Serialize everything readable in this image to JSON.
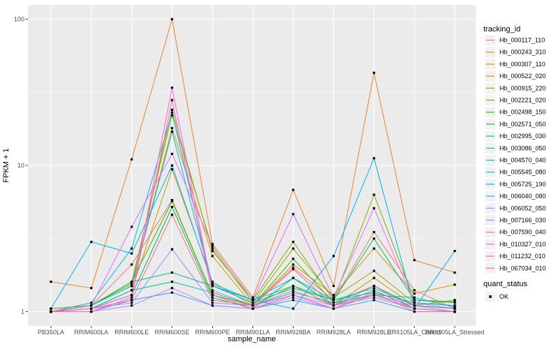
{
  "chart_data": {
    "type": "line",
    "title": "",
    "xlabel": "sample_name",
    "ylabel": "FPKM + 1",
    "yscale": "log10",
    "ylim": [
      1,
      100
    ],
    "grid": true,
    "legend_position": "right",
    "legend_title": "tracking_id",
    "quant_legend": {
      "title": "quant_status",
      "items": [
        "OK"
      ]
    },
    "y_ticks": [
      {
        "label": "1",
        "value": 1
      },
      {
        "label": "10",
        "value": 10
      },
      {
        "label": "100",
        "value": 100
      }
    ],
    "y_minor": [
      3.162,
      31.62
    ],
    "categories": [
      "PB350LA",
      "RRIM600LA",
      "RRIM600LE",
      "RRIM600SE",
      "RRIM600PE",
      "RRIM901LA",
      "RRIM928BA",
      "RRIM928LA",
      "RRIM928LE",
      "RRII105LA_Control",
      "RRII105LA_Stressed"
    ],
    "colors": {
      "panel": "#EBEBEB",
      "grid": "#FFFFFF",
      "tick_text": "#4D4D4D",
      "tick_mark": "#333333",
      "title_text": "#000000",
      "point": "#000000",
      "legend_key_bg": "#F2F2F2"
    },
    "series": [
      {
        "name": "Hb_000117_110",
        "color": "#F8766D",
        "values": [
          1.0,
          1.1,
          2.1,
          5.8,
          1.3,
          1.1,
          2.0,
          1.2,
          3.5,
          1.4,
          1.05
        ]
      },
      {
        "name": "Hb_000243_310",
        "color": "#EA8331",
        "values": [
          1.6,
          1.45,
          11.0,
          100.0,
          2.9,
          1.25,
          6.8,
          1.5,
          43.0,
          2.25,
          1.85
        ]
      },
      {
        "name": "Hb_000307_110",
        "color": "#D89000",
        "values": [
          1.05,
          1.1,
          1.5,
          18.0,
          2.4,
          1.1,
          2.1,
          1.3,
          2.7,
          1.33,
          1.53
        ]
      },
      {
        "name": "Hb_000522_020",
        "color": "#C09B00",
        "values": [
          1.0,
          1.05,
          1.4,
          9.4,
          1.6,
          1.1,
          1.5,
          1.1,
          1.7,
          1.1,
          1.2
        ]
      },
      {
        "name": "Hb_000915_220",
        "color": "#A3A500",
        "values": [
          1.0,
          1.1,
          1.6,
          22.0,
          2.7,
          1.15,
          2.7,
          1.25,
          1.9,
          1.15,
          1.1
        ]
      },
      {
        "name": "Hb_002221_020",
        "color": "#7CAE00",
        "values": [
          1.05,
          1.1,
          1.55,
          24.0,
          2.6,
          1.2,
          3.0,
          1.2,
          6.3,
          1.2,
          1.15
        ]
      },
      {
        "name": "Hb_002498_150",
        "color": "#39B600",
        "values": [
          1.0,
          1.1,
          1.6,
          5.7,
          1.3,
          1.1,
          2.3,
          1.15,
          1.5,
          1.1,
          1.05
        ]
      },
      {
        "name": "Hb_002571_050",
        "color": "#00BB4E",
        "values": [
          1.0,
          1.05,
          1.3,
          5.2,
          1.25,
          1.05,
          1.7,
          1.1,
          1.4,
          1.05,
          1.0
        ]
      },
      {
        "name": "Hb_002995_030",
        "color": "#00BF7D",
        "values": [
          1.0,
          1.1,
          1.6,
          1.85,
          1.5,
          1.15,
          1.45,
          1.2,
          3.16,
          1.2,
          1.17
        ]
      },
      {
        "name": "Hb_003086_050",
        "color": "#00C1A3",
        "values": [
          1.0,
          1.05,
          1.4,
          1.6,
          1.35,
          1.1,
          1.35,
          1.15,
          1.3,
          1.25,
          1.07
        ]
      },
      {
        "name": "Hb_004570_040",
        "color": "#00BFC4",
        "values": [
          1.0,
          1.1,
          1.5,
          17.0,
          1.5,
          1.2,
          1.5,
          1.2,
          1.35,
          1.15,
          1.1
        ]
      },
      {
        "name": "Hb_005545_080",
        "color": "#00BAE0",
        "values": [
          1.0,
          1.15,
          2.7,
          23.0,
          1.5,
          1.2,
          1.7,
          1.2,
          1.45,
          1.1,
          1.05
        ]
      },
      {
        "name": "Hb_005725_190",
        "color": "#00B0F6",
        "values": [
          1.05,
          3.0,
          2.5,
          10.0,
          1.55,
          1.2,
          1.05,
          2.4,
          11.2,
          1.05,
          2.6
        ]
      },
      {
        "name": "Hb_006040_080",
        "color": "#35A2FF",
        "values": [
          1.0,
          1.0,
          1.2,
          1.35,
          1.1,
          1.05,
          1.2,
          1.05,
          1.2,
          1.0,
          1.0
        ]
      },
      {
        "name": "Hb_006052_050",
        "color": "#9590FF",
        "values": [
          1.0,
          1.05,
          1.15,
          2.67,
          1.15,
          1.1,
          1.3,
          1.1,
          1.25,
          1.05,
          1.0
        ]
      },
      {
        "name": "Hb_007166_030",
        "color": "#C77CFF",
        "values": [
          1.0,
          1.0,
          1.1,
          1.45,
          1.1,
          1.05,
          1.25,
          1.05,
          1.3,
          1.1,
          1.0
        ]
      },
      {
        "name": "Hb_007590_040",
        "color": "#E76BF3",
        "values": [
          1.0,
          1.1,
          3.8,
          12.0,
          2.8,
          1.2,
          4.65,
          1.25,
          5.1,
          1.15,
          1.05
        ]
      },
      {
        "name": "Hb_010327_010",
        "color": "#FA62DB",
        "values": [
          1.0,
          1.05,
          1.3,
          34.0,
          1.4,
          1.1,
          1.4,
          1.1,
          1.5,
          1.05,
          1.0
        ]
      },
      {
        "name": "Hb_011232_010",
        "color": "#FF62BC",
        "values": [
          1.0,
          1.0,
          1.25,
          28.0,
          1.3,
          1.05,
          1.3,
          1.05,
          1.35,
          1.0,
          1.0
        ]
      },
      {
        "name": "Hb_067034_010",
        "color": "#FF6A98",
        "values": [
          1.0,
          1.05,
          1.2,
          4.6,
          1.2,
          1.1,
          1.95,
          1.1,
          1.3,
          1.05,
          1.0
        ]
      }
    ]
  }
}
